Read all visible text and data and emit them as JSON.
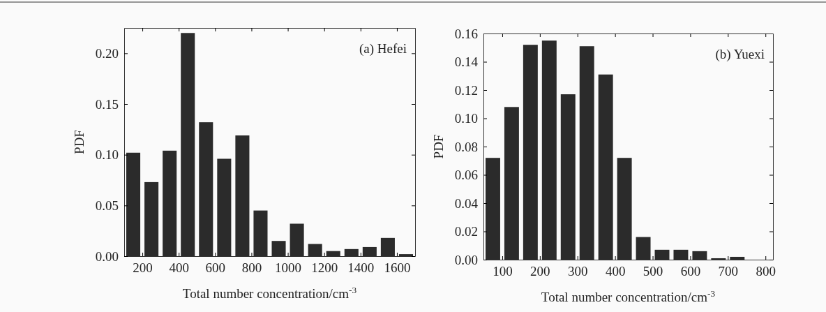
{
  "chart_data": [
    {
      "type": "histogram",
      "ylabel": "PDF",
      "xlabel": "Total number concentration/cm$^{-3}$",
      "annotations": [
        "(a) Hefei"
      ],
      "color": "#2b2b2b",
      "bins": [
        100,
        200,
        300,
        400,
        500,
        600,
        700,
        800,
        900,
        1000,
        1100,
        1200,
        1300,
        1400,
        1500,
        1600,
        1700
      ],
      "values": [
        0.102,
        0.073,
        0.104,
        0.22,
        0.132,
        0.096,
        0.119,
        0.045,
        0.015,
        0.032,
        0.012,
        0.005,
        0.007,
        0.009,
        0.018,
        0.002
      ],
      "xlim": [
        100,
        1700
      ],
      "xticks": [
        200,
        400,
        600,
        800,
        1000,
        1200,
        1400,
        1600
      ],
      "ylim": [
        0,
        0.225
      ],
      "yticks": [
        {
          "value": 0,
          "label": "0.00"
        },
        {
          "value": 0.05,
          "label": "0.05"
        },
        {
          "value": 0.1,
          "label": "0.10"
        },
        {
          "value": 0.15,
          "label": "0.15"
        },
        {
          "value": 0.2,
          "label": "0.20"
        }
      ]
    },
    {
      "type": "histogram",
      "ylabel": "PDF",
      "xlabel": "Total number concentration/cm$^{-3}$",
      "annotations": [
        "(b) Yuexi"
      ],
      "color": "#2b2b2b",
      "bins": [
        50,
        100,
        150,
        200,
        250,
        300,
        350,
        400,
        450,
        500,
        550,
        600,
        650,
        700,
        750
      ],
      "values": [
        0.072,
        0.108,
        0.152,
        0.155,
        0.117,
        0.151,
        0.131,
        0.072,
        0.016,
        0.007,
        0.007,
        0.006,
        0.001,
        0.002
      ],
      "xlim": [
        50,
        820
      ],
      "xticks": [
        100,
        200,
        300,
        400,
        500,
        600,
        700,
        800
      ],
      "ylim": [
        0,
        0.16
      ],
      "yticks": [
        {
          "value": 0,
          "label": "0.00"
        },
        {
          "value": 0.02,
          "label": "0.02"
        },
        {
          "value": 0.04,
          "label": "0.04"
        },
        {
          "value": 0.06,
          "label": "0.06"
        },
        {
          "value": 0.08,
          "label": "0.08"
        },
        {
          "value": 0.1,
          "label": "0.10"
        },
        {
          "value": 0.12,
          "label": "0.12"
        },
        {
          "value": 0.14,
          "label": "0.14"
        },
        {
          "value": 0.16,
          "label": "0.16"
        }
      ]
    }
  ]
}
